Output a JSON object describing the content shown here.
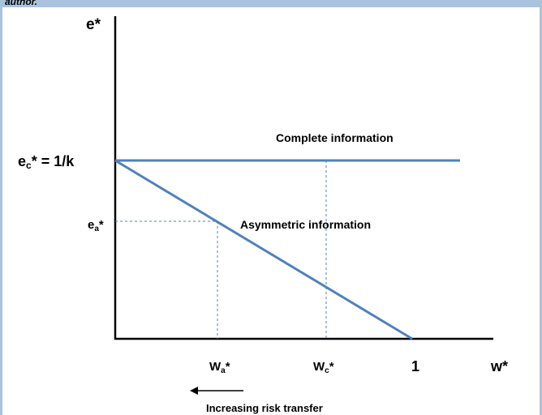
{
  "caption": "author.",
  "y_axis": {
    "label": "e*",
    "ec": {
      "base": "e",
      "sub": "c",
      "rest": "* = 1/k"
    },
    "ea": {
      "base": "e",
      "sub": "a",
      "rest": "*"
    }
  },
  "x_axis": {
    "label": "w*",
    "wa": {
      "base": "W",
      "sub": "a",
      "rest": "*"
    },
    "wc": {
      "base": "W",
      "sub": "c",
      "rest": "*"
    },
    "one": "1"
  },
  "lines": {
    "complete": "Complete information",
    "asymmetric": "Asymmetric information"
  },
  "arrow_label": "Increasing risk transfer"
}
